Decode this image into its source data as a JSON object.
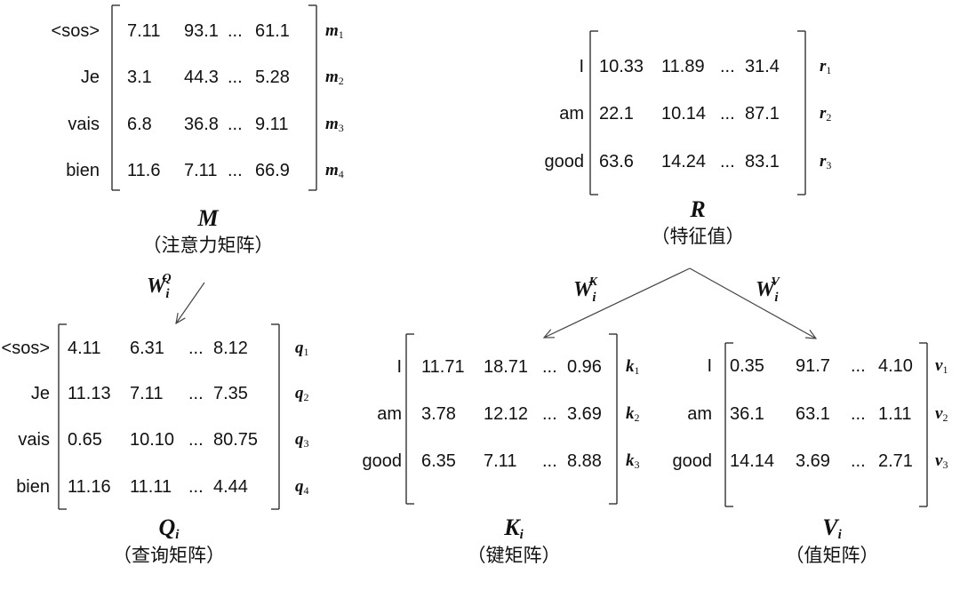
{
  "matrices": {
    "M": {
      "rows": [
        "<sos>",
        "Je",
        "vais",
        "bien"
      ],
      "values": [
        [
          "7.11",
          "93.1",
          "...",
          "61.1"
        ],
        [
          "3.1",
          "44.3",
          "...",
          "5.28"
        ],
        [
          "6.8",
          "36.8",
          "...",
          "9.11"
        ],
        [
          "11.6",
          "7.11",
          "...",
          "66.9"
        ]
      ],
      "row_symbols": [
        {
          "base": "m",
          "sub": "1"
        },
        {
          "base": "m",
          "sub": "2"
        },
        {
          "base": "m",
          "sub": "3"
        },
        {
          "base": "m",
          "sub": "4"
        }
      ],
      "symbol": {
        "base": "M",
        "sub": ""
      },
      "caption": "（注意力矩阵）"
    },
    "R": {
      "rows": [
        "I",
        "am",
        "good"
      ],
      "values": [
        [
          "10.33",
          "11.89",
          "...",
          "31.4"
        ],
        [
          "22.1",
          "10.14",
          "...",
          "87.1"
        ],
        [
          "63.6",
          "14.24",
          "...",
          "83.1"
        ]
      ],
      "row_symbols": [
        {
          "base": "r",
          "sub": "1"
        },
        {
          "base": "r",
          "sub": "2"
        },
        {
          "base": "r",
          "sub": "3"
        }
      ],
      "symbol": {
        "base": "R",
        "sub": ""
      },
      "caption": "（特征值）"
    },
    "Q": {
      "rows": [
        "<sos>",
        "Je",
        "vais",
        "bien"
      ],
      "values": [
        [
          "4.11",
          "6.31",
          "...",
          "8.12"
        ],
        [
          "11.13",
          "7.11",
          "...",
          "7.35"
        ],
        [
          "0.65",
          "10.10",
          "...",
          "80.75"
        ],
        [
          "11.16",
          "11.11",
          "...",
          "4.44"
        ]
      ],
      "row_symbols": [
        {
          "base": "q",
          "sub": "1"
        },
        {
          "base": "q",
          "sub": "2"
        },
        {
          "base": "q",
          "sub": "3"
        },
        {
          "base": "q",
          "sub": "4"
        }
      ],
      "symbol": {
        "base": "Q",
        "sub": "i"
      },
      "caption": "（查询矩阵）"
    },
    "K": {
      "rows": [
        "I",
        "am",
        "good"
      ],
      "values": [
        [
          "11.71",
          "18.71",
          "...",
          "0.96"
        ],
        [
          "3.78",
          "12.12",
          "...",
          "3.69"
        ],
        [
          "6.35",
          "7.11",
          "...",
          "8.88"
        ]
      ],
      "row_symbols": [
        {
          "base": "k",
          "sub": "1"
        },
        {
          "base": "k",
          "sub": "2"
        },
        {
          "base": "k",
          "sub": "3"
        }
      ],
      "symbol": {
        "base": "K",
        "sub": "i"
      },
      "caption": "（键矩阵）"
    },
    "V": {
      "rows": [
        "I",
        "am",
        "good"
      ],
      "values": [
        [
          "0.35",
          "91.7",
          "...",
          "4.10"
        ],
        [
          "36.1",
          "63.1",
          "...",
          "1.11"
        ],
        [
          "14.14",
          "3.69",
          "...",
          "2.71"
        ]
      ],
      "row_symbols": [
        {
          "base": "v",
          "sub": "1"
        },
        {
          "base": "v",
          "sub": "2"
        },
        {
          "base": "v",
          "sub": "3"
        }
      ],
      "symbol": {
        "base": "V",
        "sub": "i"
      },
      "caption": "（值矩阵）"
    }
  },
  "weights": {
    "WQ": {
      "base": "W",
      "sub": "i",
      "sup": "Q"
    },
    "WK": {
      "base": "W",
      "sub": "i",
      "sup": "K"
    },
    "WV": {
      "base": "W",
      "sub": "i",
      "sup": "V"
    }
  }
}
